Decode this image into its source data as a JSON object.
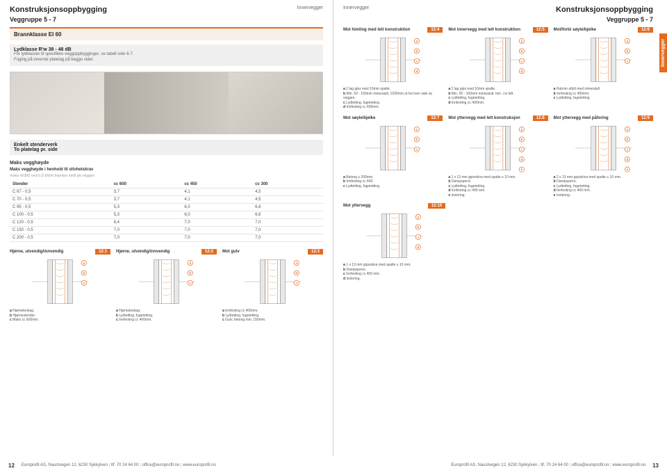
{
  "header": {
    "main_title": "Konstruksjonsoppbygging",
    "section": "Innervegger",
    "group": "Veggruppe 5 - 7"
  },
  "left": {
    "fire_box": "Brannklasse EI 60",
    "sound_box_title": "Lydklasse R'w 38 - 48 dB",
    "sound_note1": "For lydklasser til spesifikke veggoppbygginger, se tabell side 6-7.",
    "sound_note2": "Fuging på innerste platelag på begge sider.",
    "const_box_title": "Enkelt stenderverk",
    "const_box_sub": "To platelag pr. side",
    "height_title": "Maks vegghøyde",
    "tbl_caption": "Maks vegghøyde i henhold til stivhetskrav",
    "tbl_sub": "maks H/300 ved 0,5 kN/m linjelast midt på veggen",
    "tbl_cols": [
      "Stender",
      "cc 600",
      "cc 450",
      "cc 300"
    ],
    "tbl_rows": [
      [
        "C 67 - 0,5",
        "3,7",
        "4,1",
        "4,5"
      ],
      [
        "C 70 - 0,5",
        "3,7",
        "4,1",
        "4,5"
      ],
      [
        "C 95 - 0,5",
        "5,3",
        "6,0",
        "6,6"
      ],
      [
        "C 100 - 0,5",
        "5,3",
        "6,0",
        "6,6"
      ],
      [
        "C 120 - 0,5",
        "6,4",
        "7,0",
        "7,0"
      ],
      [
        "C 150 - 0,5",
        "7,0",
        "7,0",
        "7,0"
      ],
      [
        "C 200 - 0,5",
        "7,0",
        "7,0",
        "7,0"
      ]
    ],
    "details": [
      {
        "title": "Hjørne, utvendig/innvendig",
        "code": "12:1",
        "legend": [
          "a Hjørnebeslag.",
          "b Hjørnestender.",
          "c Maks cc 600mm."
        ],
        "markers": [
          "a",
          "b",
          "c"
        ]
      },
      {
        "title": "Hjørne, utvendig/innvendig",
        "code": "12:2",
        "legend": [
          "a Hjørnebeslag.",
          "b Lydtetting, fugetetting.",
          "c Innfesting cc 400mm."
        ],
        "markers": [
          "a",
          "b",
          "c"
        ]
      },
      {
        "title": "Mot gulv",
        "code": "12:3",
        "legend": [
          "a Innfesting cc 400mm.",
          "b Lydtetting, fugetetting.",
          "c Gulv, betong min. 150mm."
        ],
        "markers": [
          "a",
          "b",
          "c"
        ]
      }
    ]
  },
  "right": {
    "side_tab": "Innervegger",
    "row1": [
      {
        "title": "Mot himling med lett konstruktion",
        "code": "12:4",
        "legend": [
          "a 2 lag gips med 10mm spalte.",
          "b Min. 50 - 100mm mineralull, 1200mm ut fra hver side av veggen.",
          "c Lydtetting, fugetetting.",
          "d Innfesting cc 400mm."
        ],
        "markers": [
          "a",
          "b",
          "c",
          "d"
        ]
      },
      {
        "title": "Mot innervegg med lett konstruktion",
        "code": "12:5",
        "legend": [
          "a 2 lag gips med 10mm spalte.",
          "b Min. 50 - 100mm mineralull, min. i to felt.",
          "c Lydtetting, fugetetting.",
          "d Innfesting cc 400mm."
        ],
        "markers": [
          "a",
          "b",
          "c",
          "d"
        ]
      },
      {
        "title": "Mot/forbi søyle/bjelke",
        "code": "12:6",
        "legend": [
          "a Hulrom utfylt med mineralull.",
          "b Innfesting cc 400mm.",
          "c Lydtetting, fugetetting."
        ],
        "markers": [
          "a",
          "b",
          "c"
        ]
      }
    ],
    "row2": [
      {
        "title": "Mot søyle/bjelke",
        "code": "12:7",
        "legend": [
          "a Betong ≥ 200mm.",
          "b Innfesting cc 400.",
          "c Lydtetting, fugetetting."
        ],
        "markers": [
          "a",
          "b",
          "c"
        ]
      },
      {
        "title": "Mot yttervegg med lett konstruksjon",
        "code": "12:8",
        "legend": [
          "a 1 x 13 mm gipsskiva med spalte ≥ 10 mm.",
          "b Dampsperre.",
          "c Lydtetting, fugetetting.",
          "d Innfesting cc 400 mm.",
          "e Isolering."
        ],
        "markers": [
          "a",
          "b",
          "c",
          "d",
          "e"
        ]
      },
      {
        "title": "Mot yttervegg med påforing",
        "code": "12:9",
        "legend": [
          "a 2 x 13 mm gipsskiva med spalte ≥ 10 mm.",
          "b Dampsperre.",
          "c Lydtetting, fugetetting.",
          "d Innfesting cc 400 mm.",
          "e Isolering."
        ],
        "markers": [
          "a",
          "b",
          "c",
          "d",
          "e"
        ]
      }
    ],
    "row3": [
      {
        "title": "Mot yttervegg",
        "code": "12:10",
        "legend": [
          "a 1 x 13 mm gipsskiva med spalte ≥ 10 mm.",
          "b Dampsperre.",
          "c Innfesting cc 400 mm.",
          "d Isolering."
        ],
        "markers": [
          "a",
          "b",
          "c",
          "d"
        ]
      }
    ]
  },
  "footer": {
    "left_pn": "12",
    "right_pn": "13",
    "items": [
      "Europrofil AS, Naustvegen 12, 6230 Sykkylven",
      "tlf. 70 24 64 00",
      "office@europrofil.no",
      "www.europrofil.no"
    ]
  },
  "colors": {
    "accent": "#e46b1e",
    "accent_bg": "#f8f0e8",
    "gray_bg": "#f0f0f0",
    "line": "#555",
    "hatch": "#d0a060"
  }
}
